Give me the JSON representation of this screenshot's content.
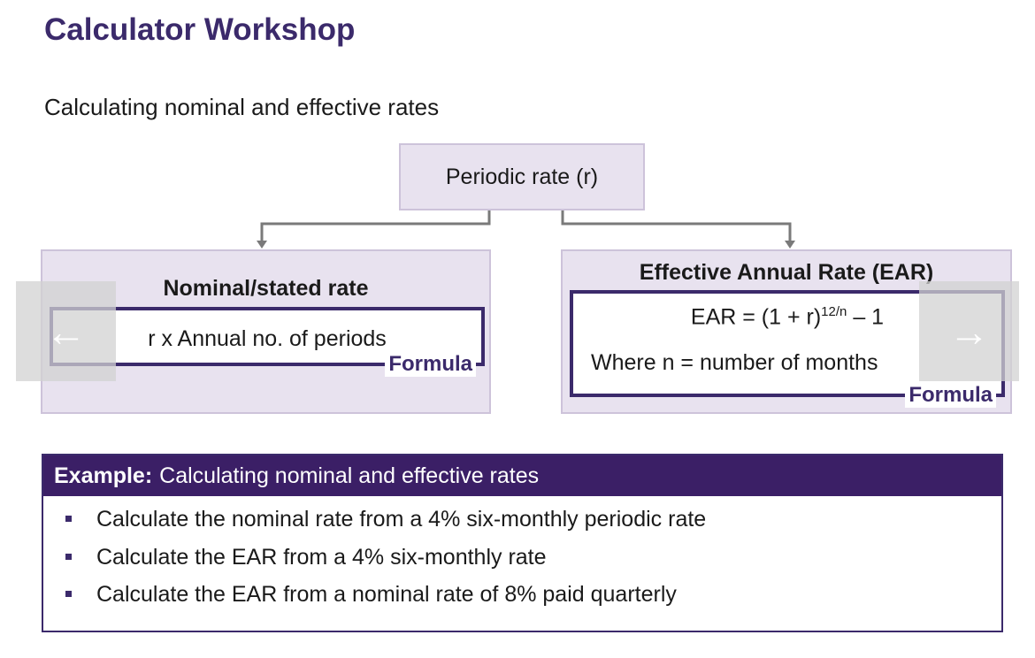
{
  "slide": {
    "title": "Calculator Workshop",
    "subtitle": "Calculating nominal and effective rates"
  },
  "diagram": {
    "periodic": "Periodic rate (r)",
    "nominal": {
      "title": "Nominal/stated rate",
      "formula": "r x Annual no. of periods",
      "tag": "Formula"
    },
    "ear": {
      "title": "Effective Annual Rate (EAR)",
      "formula_prefix": "EAR = (1 + r)",
      "formula_exponent": "12/n",
      "formula_suffix": " – 1",
      "where": "Where n = number of months",
      "tag": "Formula"
    }
  },
  "example": {
    "label": "Example:",
    "heading": "Calculating nominal and effective rates",
    "items": [
      "Calculate the nominal rate from a 4% six-monthly periodic rate",
      "Calculate the EAR from a 4% six-monthly rate",
      "Calculate the EAR from a nominal rate of 8% paid quarterly"
    ]
  },
  "nav": {
    "prev_icon": "arrow-left-icon",
    "next_icon": "arrow-right-icon",
    "prev_glyph": "←",
    "next_glyph": "→"
  },
  "colors": {
    "accent": "#3b2a6b",
    "panel_fill": "#e8e2ef",
    "header_fill": "#3b1f66"
  }
}
